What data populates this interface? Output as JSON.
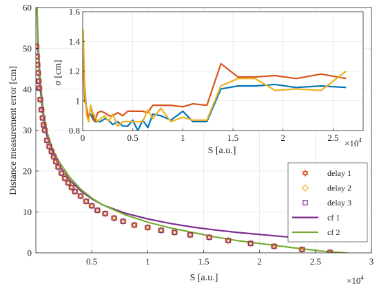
{
  "chart_data": [
    {
      "type": "scatter",
      "xlabel": "S [a.u.]",
      "ylabel": "Distance measurement error [cm]",
      "x_exponent": "4",
      "x_exponent_base": "×10",
      "xlim": [
        0,
        30000
      ],
      "ylim": [
        0,
        60
      ],
      "x_ticks": [
        5000,
        10000,
        15000,
        20000,
        25000,
        30000
      ],
      "x_tick_labels": [
        "0.5",
        "1",
        "1.5",
        "2",
        "2.5",
        "3"
      ],
      "y_ticks": [
        0,
        10,
        20,
        30,
        40,
        50,
        60
      ],
      "y_tick_labels": [
        "0",
        "10",
        "20",
        "30",
        "40",
        "50",
        "60"
      ],
      "grid": true,
      "legend_position": "lower-right",
      "series": [
        {
          "name": "delay 1",
          "kind": "marker",
          "marker": "hexagram",
          "color": "#D95319",
          "x": [
            50,
            100,
            150,
            200,
            250,
            300,
            400,
            500,
            600,
            700,
            800,
            1000,
            1200,
            1400,
            1600,
            1800,
            2000,
            2300,
            2600,
            2900,
            3200,
            3500,
            4000,
            4500,
            5000,
            5500,
            6200,
            7000,
            7800,
            8800,
            10000,
            11200,
            12400,
            13800,
            15500,
            17200,
            19200,
            21300,
            23800,
            26300
          ],
          "y": [
            50.5,
            48,
            46,
            44,
            42,
            40.3,
            37.5,
            35,
            33,
            31.3,
            30,
            27.5,
            26,
            24.8,
            23.5,
            22.3,
            21,
            19.5,
            18.2,
            17.1,
            16,
            15,
            13.9,
            12.6,
            11.5,
            10.4,
            9.6,
            8.5,
            7.7,
            6.8,
            6.2,
            5.5,
            5,
            4.4,
            3.8,
            3,
            2.3,
            1.6,
            0.8,
            0.1
          ]
        },
        {
          "name": "delay 2",
          "kind": "marker",
          "marker": "diamond",
          "color": "#EDB120",
          "x": [
            50,
            100,
            150,
            200,
            250,
            300,
            400,
            500,
            600,
            700,
            800,
            1000,
            1200,
            1400,
            1600,
            1800,
            2000,
            2300,
            2600,
            2900,
            3200,
            3500,
            4000,
            4500,
            5000,
            5500,
            6200,
            7000,
            7800,
            8800,
            10000,
            11200,
            12400,
            13800,
            15500,
            17200,
            19200,
            21300,
            23800,
            26300
          ],
          "y": [
            50.5,
            48,
            46,
            44,
            42,
            40.3,
            37.5,
            35,
            33,
            31.3,
            30,
            27.5,
            26,
            24.8,
            23.5,
            22.3,
            21,
            19.5,
            18.2,
            17.1,
            16,
            15,
            13.9,
            12.6,
            11.5,
            10.4,
            9.6,
            8.5,
            7.7,
            6.8,
            6.2,
            5.5,
            5,
            4.4,
            3.8,
            3,
            2.3,
            1.6,
            0.8,
            0.1
          ]
        },
        {
          "name": "delay 3",
          "kind": "marker",
          "marker": "square",
          "color": "#7E2F8E",
          "x": [
            50,
            100,
            150,
            200,
            250,
            300,
            400,
            500,
            600,
            700,
            800,
            1000,
            1200,
            1400,
            1600,
            1800,
            2000,
            2300,
            2600,
            2900,
            3200,
            3500,
            4000,
            4500,
            5000,
            5500,
            6200,
            7000,
            7800,
            8800,
            10000,
            11200,
            12400,
            13800,
            15500,
            17200,
            19200,
            21300,
            23800,
            26300
          ],
          "y": [
            50.5,
            48,
            46,
            44,
            42,
            40.3,
            37.5,
            35,
            33,
            31.3,
            30,
            27.5,
            26,
            24.8,
            23.5,
            22.3,
            21,
            19.5,
            18.2,
            17.1,
            16,
            15,
            13.9,
            12.6,
            11.5,
            10.4,
            9.6,
            8.5,
            7.7,
            6.8,
            6.2,
            5.5,
            5,
            4.4,
            3.8,
            3,
            2.3,
            1.6,
            0.8,
            0.1
          ]
        },
        {
          "name": "cf 1",
          "kind": "line",
          "color": "#7E2F8E",
          "x": [
            100,
            200,
            400,
            700,
            1000,
            1500,
            2000,
            3000,
            4000,
            5000,
            6000,
            8000,
            10000,
            12000,
            14000,
            16000,
            18000,
            20000,
            22000,
            24000,
            26000,
            28000
          ],
          "y": [
            60,
            50,
            40,
            32.5,
            28.5,
            24.6,
            21.7,
            17.9,
            15.2,
            13.2,
            11.7,
            9.7,
            8.3,
            7.2,
            6.3,
            5.6,
            5,
            4.5,
            4,
            3.6,
            3.2,
            2.8
          ]
        },
        {
          "name": "cf 2",
          "kind": "line",
          "color": "#77AC30",
          "x": [
            100,
            200,
            400,
            700,
            1000,
            1500,
            2000,
            3000,
            4000,
            5000,
            6000,
            8000,
            10000,
            12000,
            14000,
            16000,
            18000,
            20000,
            22000,
            24000,
            26000,
            28000
          ],
          "y": [
            60,
            52,
            42,
            34,
            29.5,
            25.4,
            22.6,
            18.6,
            15.6,
            13.4,
            11.7,
            9.3,
            7.5,
            6.1,
            5,
            3.9,
            3,
            2.3,
            1.6,
            0.9,
            0.3,
            -0.1
          ]
        }
      ]
    },
    {
      "type": "line",
      "xlabel": "S [a.u.]",
      "ylabel": "σ [cm]",
      "x_exponent": "4",
      "x_exponent_base": "×10",
      "xlim": [
        0,
        28000
      ],
      "ylim": [
        0.8,
        1.6
      ],
      "x_ticks": [
        0,
        5000,
        10000,
        15000,
        20000,
        25000
      ],
      "x_tick_labels": [
        "0",
        "0.5",
        "1",
        "1.5",
        "2",
        "2.5"
      ],
      "y_ticks": [
        0.8,
        1.0,
        1.2,
        1.4,
        1.6
      ],
      "y_tick_labels": [
        "0.8",
        "1",
        "1.2",
        "1.4",
        "1.6"
      ],
      "grid": true,
      "series": [
        {
          "color": "#0072BD",
          "x": [
            50,
            200,
            400,
            600,
            800,
            1000,
            1200,
            1500,
            1800,
            2200,
            2600,
            3000,
            3500,
            4000,
            4500,
            5000,
            5500,
            6000,
            6500,
            7000,
            7800,
            8800,
            10000,
            11000,
            12400,
            13800,
            15500,
            17200,
            19200,
            21300,
            23800,
            26300
          ],
          "y": [
            1.3,
            1.1,
            0.92,
            0.9,
            0.91,
            0.88,
            0.86,
            0.86,
            0.86,
            0.88,
            0.87,
            0.84,
            0.86,
            0.83,
            0.83,
            0.87,
            0.8,
            0.87,
            0.82,
            0.91,
            0.9,
            0.87,
            0.93,
            0.86,
            0.86,
            1.08,
            1.1,
            1.1,
            1.11,
            1.09,
            1.1,
            1.09
          ]
        },
        {
          "color": "#D95319",
          "x": [
            50,
            200,
            400,
            600,
            800,
            1000,
            1200,
            1500,
            1800,
            2200,
            2600,
            3000,
            3500,
            4000,
            4500,
            5000,
            5500,
            6000,
            6500,
            7000,
            7800,
            8800,
            10000,
            11000,
            12400,
            13800,
            15500,
            17200,
            19200,
            21300,
            23800,
            26300
          ],
          "y": [
            1.25,
            1.0,
            0.95,
            0.88,
            0.96,
            0.91,
            0.86,
            0.92,
            0.93,
            0.92,
            0.9,
            0.9,
            0.92,
            0.9,
            0.93,
            0.93,
            0.93,
            0.93,
            0.92,
            0.97,
            0.97,
            0.97,
            0.96,
            0.98,
            0.97,
            1.25,
            1.16,
            1.16,
            1.17,
            1.15,
            1.18,
            1.15
          ]
        },
        {
          "color": "#EDB120",
          "x": [
            50,
            200,
            400,
            600,
            800,
            1000,
            1200,
            1500,
            1800,
            2200,
            2600,
            3000,
            3500,
            4000,
            4500,
            5000,
            5500,
            6000,
            6500,
            7000,
            7800,
            8800,
            10000,
            11000,
            12400,
            13800,
            15500,
            17200,
            19200,
            21300,
            23800,
            26300
          ],
          "y": [
            1.48,
            1.08,
            0.9,
            0.86,
            0.97,
            0.92,
            0.9,
            0.86,
            0.88,
            0.9,
            0.86,
            0.91,
            0.83,
            0.86,
            0.86,
            0.86,
            0.86,
            0.86,
            0.94,
            0.88,
            0.95,
            0.86,
            0.89,
            0.87,
            0.87,
            1.1,
            1.15,
            1.15,
            1.07,
            1.08,
            1.07,
            1.2
          ]
        }
      ]
    }
  ]
}
